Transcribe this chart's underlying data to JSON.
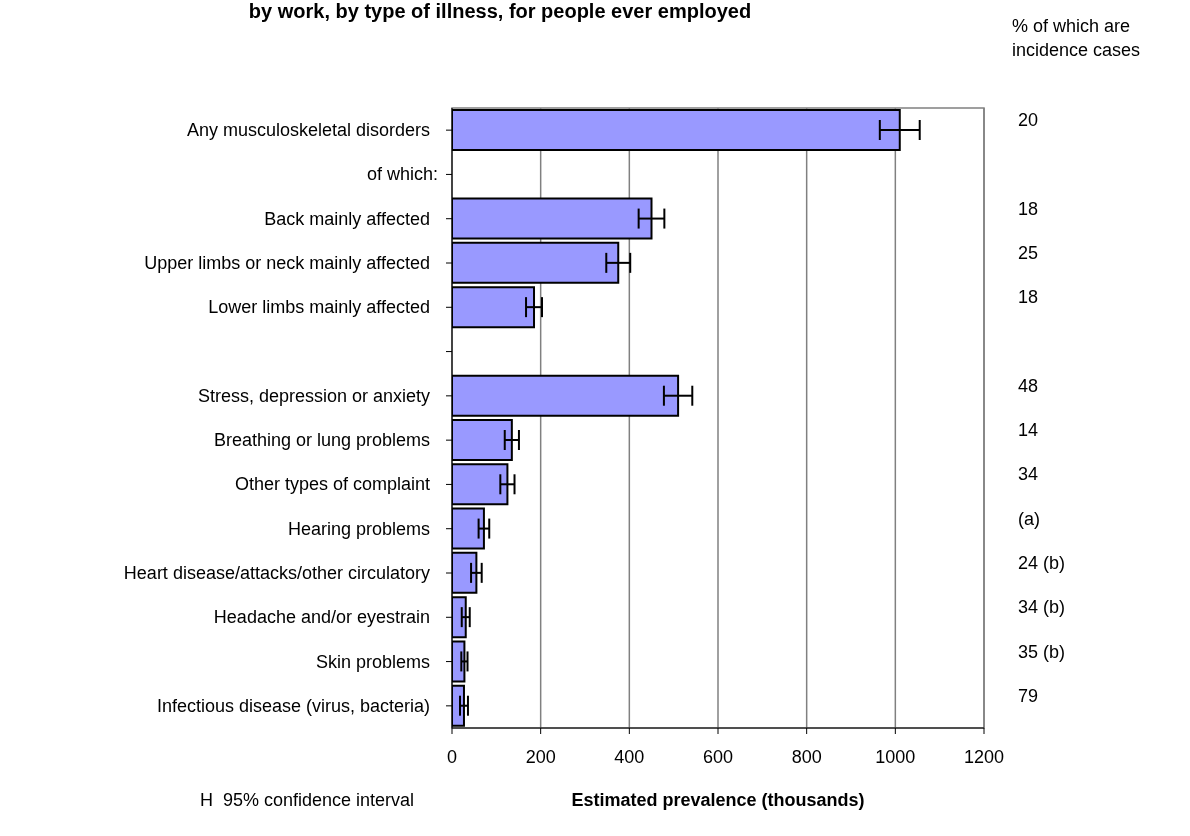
{
  "chart_data": {
    "type": "bar",
    "orientation": "horizontal",
    "title": "by work, by type of illness, for people ever employed",
    "xlabel": "Estimated prevalence (thousands)",
    "y2label": "% of which are incidence cases",
    "categories": [
      "Any musculoskeletal disorders",
      null,
      "Back mainly affected",
      "Upper limbs or neck mainly affected",
      "Lower limbs mainly affected",
      null,
      "Stress, depression or anxiety",
      "Breathing or lung problems",
      "Other types of complaint",
      "Hearing problems",
      "Heart disease/attacks/other circulatory",
      "Headache and/or eyestrain",
      "Skin problems",
      "Infectious disease (virus, bacteria)"
    ],
    "y2_categories": [
      "20",
      null,
      "18",
      "25",
      "18",
      null,
      "48",
      "14",
      "34",
      "(a)",
      "24 (b)",
      "34 (b)",
      "35 (b)",
      "79"
    ],
    "values": [
      1010,
      null,
      450,
      375,
      185,
      null,
      510,
      135,
      125,
      72,
      55,
      31,
      28,
      27
    ],
    "errors": [
      45,
      null,
      29,
      27,
      18,
      null,
      32,
      16,
      16,
      12,
      12,
      9,
      7,
      9
    ],
    "color": "#9999ff",
    "xlim": [
      0,
      1200
    ],
    "xticks": [
      0,
      200,
      400,
      600,
      800,
      1000,
      1200
    ],
    "grid": "x",
    "annotations": [
      "H  95% confidence interval",
      "of which:"
    ]
  }
}
